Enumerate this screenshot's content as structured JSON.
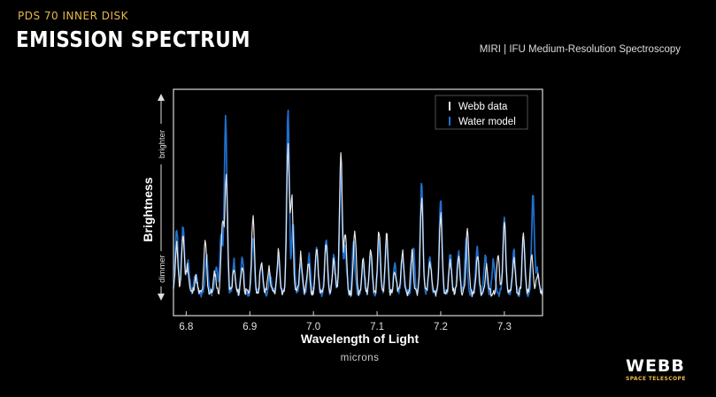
{
  "header": {
    "kicker": "PDS 70 INNER DISK",
    "title": "EMISSION SPECTRUM",
    "instrument": "MIRI | IFU Medium-Resolution Spectroscopy"
  },
  "logo": {
    "word": "WEBB",
    "sub": "SPACE TELESCOPE"
  },
  "colors": {
    "webb_data": "#e6e6e6",
    "water_model": "#1f6fcf",
    "frame": "#d8d8d8",
    "accent": "#e8b84a"
  },
  "chart_data": {
    "type": "line",
    "xlabel": "Wavelength of Light",
    "xunit": "microns",
    "ylabel": "Brightness",
    "y_direction_labels": {
      "top": "brighter",
      "bottom": "dimmer"
    },
    "xlim": [
      6.78,
      7.36
    ],
    "ylim": [
      0,
      1
    ],
    "xticks": [
      6.8,
      6.9,
      7.0,
      7.1,
      7.2,
      7.3
    ],
    "xtick_labels": [
      "6.8",
      "6.9",
      "7.0",
      "7.1",
      "7.2",
      "7.3"
    ],
    "yticks": [],
    "legend": {
      "position": "top-right"
    },
    "baseline": 0.1,
    "series": [
      {
        "name": "Webb data",
        "color": "#e6e6e6",
        "peaks": [
          [
            6.785,
            0.32
          ],
          [
            6.795,
            0.36
          ],
          [
            6.802,
            0.22
          ],
          [
            6.815,
            0.17
          ],
          [
            6.83,
            0.33
          ],
          [
            6.845,
            0.19
          ],
          [
            6.857,
            0.42
          ],
          [
            6.863,
            0.62
          ],
          [
            6.875,
            0.2
          ],
          [
            6.888,
            0.22
          ],
          [
            6.905,
            0.45
          ],
          [
            6.918,
            0.24
          ],
          [
            6.93,
            0.21
          ],
          [
            6.945,
            0.29
          ],
          [
            6.96,
            0.74
          ],
          [
            6.966,
            0.52
          ],
          [
            6.98,
            0.27
          ],
          [
            6.992,
            0.24
          ],
          [
            7.005,
            0.3
          ],
          [
            7.02,
            0.33
          ],
          [
            7.032,
            0.24
          ],
          [
            7.043,
            0.73
          ],
          [
            7.05,
            0.37
          ],
          [
            7.065,
            0.38
          ],
          [
            7.078,
            0.26
          ],
          [
            7.09,
            0.3
          ],
          [
            7.103,
            0.38
          ],
          [
            7.115,
            0.36
          ],
          [
            7.128,
            0.2
          ],
          [
            7.14,
            0.29
          ],
          [
            7.155,
            0.28
          ],
          [
            7.17,
            0.52
          ],
          [
            7.183,
            0.24
          ],
          [
            7.2,
            0.45
          ],
          [
            7.215,
            0.24
          ],
          [
            7.228,
            0.26
          ],
          [
            7.242,
            0.38
          ],
          [
            7.258,
            0.28
          ],
          [
            7.272,
            0.22
          ],
          [
            7.29,
            0.26
          ],
          [
            7.3,
            0.41
          ],
          [
            7.315,
            0.26
          ],
          [
            7.33,
            0.36
          ],
          [
            7.343,
            0.28
          ],
          [
            7.352,
            0.18
          ]
        ]
      },
      {
        "name": "Water model",
        "color": "#1f6fcf",
        "peaks": [
          [
            6.785,
            0.38
          ],
          [
            6.795,
            0.4
          ],
          [
            6.803,
            0.24
          ],
          [
            6.815,
            0.19
          ],
          [
            6.832,
            0.27
          ],
          [
            6.847,
            0.22
          ],
          [
            6.855,
            0.36
          ],
          [
            6.862,
            0.87
          ],
          [
            6.875,
            0.24
          ],
          [
            6.888,
            0.26
          ],
          [
            6.905,
            0.34
          ],
          [
            6.918,
            0.22
          ],
          [
            6.932,
            0.19
          ],
          [
            6.945,
            0.26
          ],
          [
            6.96,
            0.92
          ],
          [
            6.968,
            0.4
          ],
          [
            6.98,
            0.24
          ],
          [
            6.993,
            0.27
          ],
          [
            7.005,
            0.3
          ],
          [
            7.02,
            0.35
          ],
          [
            7.032,
            0.26
          ],
          [
            7.043,
            0.65
          ],
          [
            7.05,
            0.3
          ],
          [
            7.063,
            0.33
          ],
          [
            7.078,
            0.24
          ],
          [
            7.09,
            0.28
          ],
          [
            7.103,
            0.33
          ],
          [
            7.115,
            0.34
          ],
          [
            7.128,
            0.22
          ],
          [
            7.14,
            0.27
          ],
          [
            7.157,
            0.31
          ],
          [
            7.17,
            0.59
          ],
          [
            7.183,
            0.26
          ],
          [
            7.2,
            0.52
          ],
          [
            7.215,
            0.27
          ],
          [
            7.228,
            0.29
          ],
          [
            7.24,
            0.33
          ],
          [
            7.257,
            0.3
          ],
          [
            7.27,
            0.27
          ],
          [
            7.283,
            0.25
          ],
          [
            7.3,
            0.44
          ],
          [
            7.315,
            0.29
          ],
          [
            7.33,
            0.35
          ],
          [
            7.345,
            0.53
          ],
          [
            7.352,
            0.2
          ]
        ]
      }
    ]
  }
}
